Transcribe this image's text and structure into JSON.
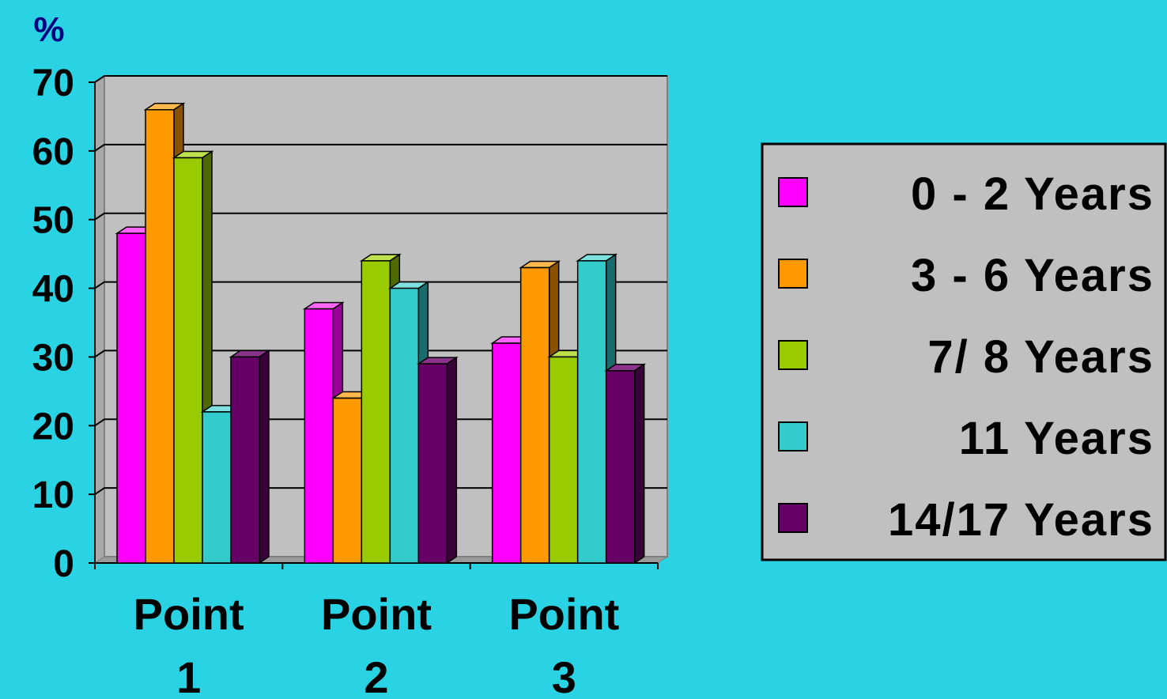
{
  "chart_data": {
    "type": "bar",
    "ylabel": "%",
    "ylim": [
      0,
      70
    ],
    "yticks": [
      0,
      10,
      20,
      30,
      40,
      50,
      60,
      70
    ],
    "categories": [
      "Point 1",
      "Point 2",
      "Point 3"
    ],
    "category_lines": [
      [
        "Point",
        "1"
      ],
      [
        "Point",
        "2"
      ],
      [
        "Point",
        "3"
      ]
    ],
    "series": [
      {
        "name": "0 - 2 Years",
        "color": "#ff00ff",
        "side": "#990099",
        "top": "#ff66ff",
        "values": [
          48,
          37,
          32
        ]
      },
      {
        "name": "3 - 6 Years",
        "color": "#ff9900",
        "side": "#8a5200",
        "top": "#ffb84d",
        "values": [
          66,
          24,
          43
        ]
      },
      {
        "name": "7/ 8 Years",
        "color": "#99cc00",
        "side": "#4f6a00",
        "top": "#bde04d",
        "values": [
          59,
          44,
          30
        ]
      },
      {
        "name": "11 Years",
        "color": "#33cccc",
        "side": "#1a6b6b",
        "top": "#7fe0e0",
        "values": [
          22,
          40,
          44
        ]
      },
      {
        "name": "14/17 Years",
        "color": "#660066",
        "side": "#3a003a",
        "top": "#8a338a",
        "values": [
          30,
          29,
          28
        ]
      }
    ],
    "grid": true,
    "legend": "right",
    "colors": {
      "background": "#2ad3e4",
      "plot_area": "#c0c0c0",
      "legend_box": "#c0c0c0",
      "ylabel": "#000080"
    }
  }
}
